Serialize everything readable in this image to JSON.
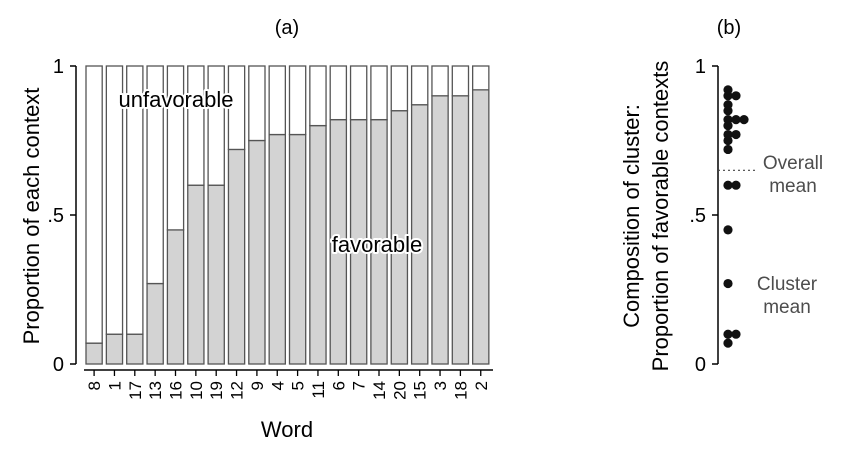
{
  "chart_data": [
    {
      "type": "bar",
      "stacked": true,
      "title": "(a)",
      "xlabel": "Word",
      "ylabel": "Proportion of each context",
      "ylim": [
        0,
        1
      ],
      "yticks": [
        {
          "value": 0,
          "label": "0"
        },
        {
          "value": 0.5,
          "label": ".5"
        },
        {
          "value": 1,
          "label": "1"
        }
      ],
      "categories": [
        "8",
        "1",
        "17",
        "13",
        "16",
        "10",
        "19",
        "12",
        "9",
        "4",
        "5",
        "11",
        "6",
        "7",
        "14",
        "20",
        "15",
        "3",
        "18",
        "2"
      ],
      "series": [
        {
          "name": "favorable",
          "color": "#d3d3d3",
          "values": [
            0.07,
            0.1,
            0.1,
            0.27,
            0.45,
            0.6,
            0.6,
            0.72,
            0.75,
            0.77,
            0.77,
            0.8,
            0.82,
            0.82,
            0.82,
            0.85,
            0.87,
            0.9,
            0.9,
            0.92
          ]
        },
        {
          "name": "unfavorable",
          "color": "#ffffff",
          "values": [
            0.93,
            0.9,
            0.9,
            0.73,
            0.55,
            0.4,
            0.4,
            0.28,
            0.25,
            0.23,
            0.23,
            0.2,
            0.18,
            0.18,
            0.18,
            0.15,
            0.13,
            0.1,
            0.1,
            0.08
          ]
        }
      ],
      "labels": {
        "unfavorable": "unfavorable",
        "favorable": "favorable"
      }
    },
    {
      "type": "scatter",
      "title": "(b)",
      "ylabel": "Composition of cluster:",
      "ylabel2": "Proportion of favorable contexts",
      "ylim": [
        0,
        1
      ],
      "yticks": [
        {
          "value": 0,
          "label": "0"
        },
        {
          "value": 0.5,
          "label": ".5"
        },
        {
          "value": 1,
          "label": "1"
        }
      ],
      "values": [
        0.07,
        0.1,
        0.1,
        0.27,
        0.45,
        0.6,
        0.6,
        0.72,
        0.75,
        0.77,
        0.77,
        0.8,
        0.82,
        0.82,
        0.82,
        0.85,
        0.87,
        0.9,
        0.9,
        0.92
      ],
      "overall_mean": 0.65,
      "annotations": {
        "overall_line1": "Overall",
        "overall_line2": "mean",
        "cluster_line1": "Cluster",
        "cluster_line2": "mean"
      }
    }
  ]
}
